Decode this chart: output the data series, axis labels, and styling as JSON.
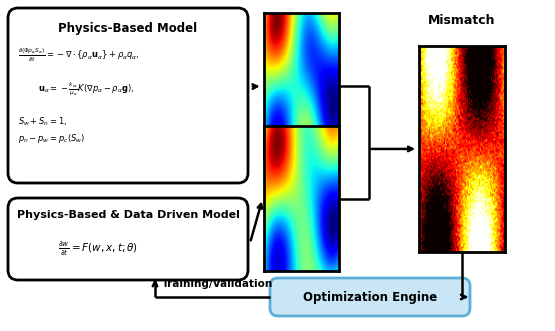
{
  "bg_color": "#ffffff",
  "fig_width": 5.55,
  "fig_height": 3.31,
  "dpi": 100,
  "physics_box": {
    "title": "Physics-Based Model",
    "eq1": "$\\frac{\\partial(\\Phi\\rho_\\alpha S_\\alpha)}{\\partial t} = -\\nabla \\cdot \\{\\rho_\\alpha \\mathbf{u}_\\alpha\\} + \\rho_\\alpha q_\\alpha,$",
    "eq2": "$\\mathbf{u}_\\alpha = -\\frac{k_{r\\alpha}}{\\mu_\\alpha}K(\\nabla p_\\alpha - \\rho_\\alpha \\mathbf{g}),$",
    "eq3": "$S_w + S_n = 1,$",
    "eq4": "$p_n - p_w = p_c(S_w)$"
  },
  "data_box": {
    "title": "Physics-Based & Data Driven Model",
    "eq": "$\\frac{\\partial w}{\\partial t} = F(w, x, t; \\theta)$"
  },
  "mismatch_label": "Mismatch",
  "optim_label": "Optimization Engine",
  "training_label": "Training/Validation",
  "arrow_color": "#000000",
  "box_ec": "#000000",
  "optim_ec": "#5bafd6",
  "optim_fc": "#c8e6f5"
}
